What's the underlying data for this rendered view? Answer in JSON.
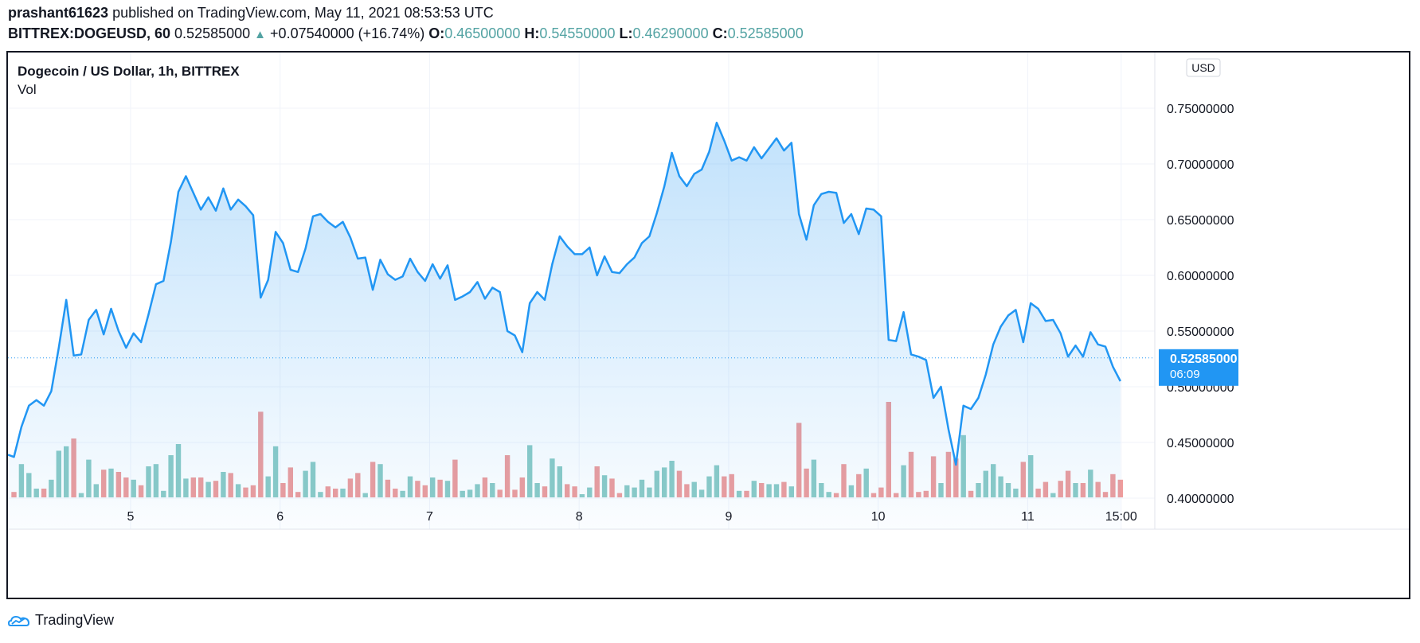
{
  "header": {
    "author": "prashant61623",
    "published_text": "published on TradingView.com, May 11, 2021 08:53:53 UTC",
    "symbol": "BITTREX:DOGEUSD, 60",
    "last": "0.52585000",
    "change": "+0.07540000 (+16.74%)",
    "o_label": "O:",
    "o_value": "0.46500000",
    "h_label": "H:",
    "h_value": "0.54550000",
    "l_label": "L:",
    "l_value": "0.46290000",
    "c_label": "C:",
    "c_value": "0.52585000"
  },
  "legend": {
    "title": "Dogecoin / US Dollar, 1h, BITTREX",
    "vol_label": "Vol"
  },
  "currency_label": "USD",
  "last_price_label": "0.52585000",
  "countdown_label": "06:09",
  "footer": {
    "brand": "TradingView"
  },
  "colors": {
    "line": "#2196f3",
    "fill_top": "#2196f3",
    "vol_up": "#8ccbc6",
    "vol_down": "#ee9c9c",
    "grid": "#f0f3fa",
    "text": "#131722",
    "teal": "#53a3a3"
  },
  "chart_data": {
    "type": "area",
    "title": "Dogecoin / US Dollar, 1h, BITTREX",
    "ylabel": "USD",
    "ylim": [
      0.4,
      0.76
    ],
    "y_ticks": [
      "0.40000000",
      "0.45000000",
      "0.50000000",
      "0.55000000",
      "0.60000000",
      "0.65000000",
      "0.70000000",
      "0.75000000"
    ],
    "x_range": [
      4.18,
      11.85
    ],
    "x_ticks": [
      {
        "x": 5,
        "label": "5"
      },
      {
        "x": 6,
        "label": "6"
      },
      {
        "x": 7,
        "label": "7"
      },
      {
        "x": 8,
        "label": "8"
      },
      {
        "x": 9,
        "label": "9"
      },
      {
        "x": 10,
        "label": "10"
      },
      {
        "x": 11,
        "label": "11"
      },
      {
        "x": 11.625,
        "label": "15:00"
      }
    ],
    "grid": true,
    "last_price": 0.52585,
    "series": [
      {
        "name": "Vol",
        "points": [
          [
            4.18,
            0.439
          ],
          [
            4.22,
            0.437
          ],
          [
            4.27,
            0.464
          ],
          [
            4.32,
            0.483
          ],
          [
            4.37,
            0.488
          ],
          [
            4.42,
            0.483
          ],
          [
            4.47,
            0.496
          ],
          [
            4.52,
            0.535
          ],
          [
            4.57,
            0.578
          ],
          [
            4.62,
            0.528
          ],
          [
            4.67,
            0.529
          ],
          [
            4.72,
            0.56
          ],
          [
            4.77,
            0.569
          ],
          [
            4.82,
            0.547
          ],
          [
            4.87,
            0.57
          ],
          [
            4.92,
            0.55
          ],
          [
            4.97,
            0.535
          ],
          [
            5.02,
            0.548
          ],
          [
            5.07,
            0.54
          ],
          [
            5.12,
            0.565
          ],
          [
            5.17,
            0.592
          ],
          [
            5.22,
            0.595
          ],
          [
            5.27,
            0.63
          ],
          [
            5.32,
            0.675
          ],
          [
            5.37,
            0.689
          ],
          [
            5.42,
            0.674
          ],
          [
            5.47,
            0.659
          ],
          [
            5.52,
            0.67
          ],
          [
            5.57,
            0.658
          ],
          [
            5.62,
            0.678
          ],
          [
            5.67,
            0.659
          ],
          [
            5.72,
            0.668
          ],
          [
            5.77,
            0.662
          ],
          [
            5.82,
            0.654
          ],
          [
            5.87,
            0.58
          ],
          [
            5.92,
            0.596
          ],
          [
            5.97,
            0.639
          ],
          [
            6.02,
            0.629
          ],
          [
            6.07,
            0.605
          ],
          [
            6.12,
            0.603
          ],
          [
            6.17,
            0.624
          ],
          [
            6.22,
            0.653
          ],
          [
            6.27,
            0.655
          ],
          [
            6.32,
            0.648
          ],
          [
            6.37,
            0.643
          ],
          [
            6.42,
            0.648
          ],
          [
            6.47,
            0.634
          ],
          [
            6.52,
            0.615
          ],
          [
            6.57,
            0.616
          ],
          [
            6.62,
            0.587
          ],
          [
            6.67,
            0.614
          ],
          [
            6.72,
            0.601
          ],
          [
            6.77,
            0.596
          ],
          [
            6.82,
            0.599
          ],
          [
            6.87,
            0.615
          ],
          [
            6.92,
            0.603
          ],
          [
            6.97,
            0.595
          ],
          [
            7.02,
            0.61
          ],
          [
            7.07,
            0.597
          ],
          [
            7.12,
            0.609
          ],
          [
            7.17,
            0.578
          ],
          [
            7.22,
            0.581
          ],
          [
            7.27,
            0.585
          ],
          [
            7.32,
            0.594
          ],
          [
            7.37,
            0.579
          ],
          [
            7.42,
            0.589
          ],
          [
            7.47,
            0.585
          ],
          [
            7.52,
            0.55
          ],
          [
            7.57,
            0.546
          ],
          [
            7.62,
            0.531
          ],
          [
            7.67,
            0.575
          ],
          [
            7.72,
            0.585
          ],
          [
            7.77,
            0.578
          ],
          [
            7.82,
            0.61
          ],
          [
            7.87,
            0.635
          ],
          [
            7.92,
            0.626
          ],
          [
            7.97,
            0.619
          ],
          [
            8.02,
            0.619
          ],
          [
            8.07,
            0.625
          ],
          [
            8.12,
            0.6
          ],
          [
            8.17,
            0.617
          ],
          [
            8.22,
            0.603
          ],
          [
            8.27,
            0.602
          ],
          [
            8.32,
            0.61
          ],
          [
            8.37,
            0.616
          ],
          [
            8.42,
            0.629
          ],
          [
            8.47,
            0.635
          ],
          [
            8.52,
            0.656
          ],
          [
            8.57,
            0.68
          ],
          [
            8.62,
            0.71
          ],
          [
            8.67,
            0.689
          ],
          [
            8.72,
            0.68
          ],
          [
            8.77,
            0.691
          ],
          [
            8.82,
            0.695
          ],
          [
            8.87,
            0.711
          ],
          [
            8.92,
            0.737
          ],
          [
            8.97,
            0.721
          ],
          [
            9.02,
            0.703
          ],
          [
            9.07,
            0.706
          ],
          [
            9.12,
            0.703
          ],
          [
            9.17,
            0.715
          ],
          [
            9.22,
            0.705
          ],
          [
            9.27,
            0.714
          ],
          [
            9.32,
            0.723
          ],
          [
            9.37,
            0.712
          ],
          [
            9.42,
            0.719
          ],
          [
            9.47,
            0.655
          ],
          [
            9.52,
            0.632
          ],
          [
            9.57,
            0.663
          ],
          [
            9.62,
            0.673
          ],
          [
            9.67,
            0.675
          ],
          [
            9.72,
            0.674
          ],
          [
            9.77,
            0.647
          ],
          [
            9.82,
            0.655
          ],
          [
            9.87,
            0.637
          ],
          [
            9.92,
            0.66
          ],
          [
            9.97,
            0.659
          ],
          [
            10.02,
            0.653
          ],
          [
            10.07,
            0.542
          ],
          [
            10.12,
            0.541
          ],
          [
            10.17,
            0.567
          ],
          [
            10.22,
            0.529
          ],
          [
            10.27,
            0.527
          ],
          [
            10.32,
            0.524
          ],
          [
            10.37,
            0.49
          ],
          [
            10.42,
            0.5
          ],
          [
            10.47,
            0.462
          ],
          [
            10.52,
            0.43
          ],
          [
            10.57,
            0.483
          ],
          [
            10.62,
            0.48
          ],
          [
            10.67,
            0.49
          ],
          [
            10.72,
            0.511
          ],
          [
            10.77,
            0.538
          ],
          [
            10.82,
            0.554
          ],
          [
            10.87,
            0.564
          ],
          [
            10.92,
            0.569
          ],
          [
            10.97,
            0.54
          ],
          [
            11.02,
            0.575
          ],
          [
            11.07,
            0.57
          ],
          [
            11.12,
            0.559
          ],
          [
            11.17,
            0.56
          ],
          [
            11.22,
            0.548
          ],
          [
            11.27,
            0.527
          ],
          [
            11.32,
            0.537
          ],
          [
            11.37,
            0.527
          ],
          [
            11.42,
            0.549
          ],
          [
            11.47,
            0.538
          ],
          [
            11.52,
            0.536
          ],
          [
            11.57,
            0.518
          ],
          [
            11.62,
            0.505
          ]
        ]
      }
    ]
  }
}
